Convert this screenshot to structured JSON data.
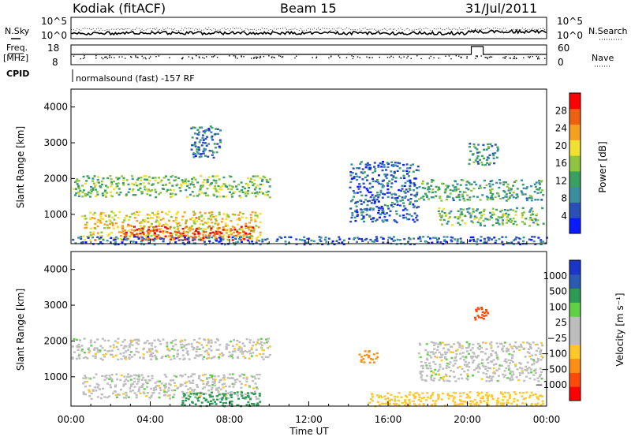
{
  "header": {
    "station": "Kodiak (fitACF)",
    "beam": "Beam 15",
    "date": "31/Jul/2011"
  },
  "left_labels": {
    "nsky": "N.Sky",
    "freq": "Freq.",
    "mhz": "[MHz]",
    "cpid": "CPID"
  },
  "right_labels": {
    "nsearch": "N.Search",
    "nave": "Nave"
  },
  "noise_panel": {
    "left_ticks": [
      "10^5",
      "10^0"
    ],
    "right_ticks": [
      "10^5",
      "10^0"
    ]
  },
  "freq_panel": {
    "left_ticks": [
      "18",
      "8"
    ],
    "right_ticks": [
      "60",
      "0"
    ]
  },
  "cpid_text": "normalsound (fast) -157 RF",
  "colors": {
    "power_scale": [
      "#0a1cff",
      "#2b4fb8",
      "#3b8ea0",
      "#3aa060",
      "#8fc440",
      "#f0e030",
      "#f5a020",
      "#f06010",
      "#ff0000"
    ],
    "velocity_scale": [
      "#ff0000",
      "#ff4a0a",
      "#ff8f14",
      "#ffc828",
      "#bdbdbd",
      "#bdbdbd",
      "#5fd048",
      "#2f9a55",
      "#2a5ab3",
      "#1a36c8"
    ]
  },
  "chart_data": [
    {
      "type": "heatmap",
      "panel": "power",
      "ylabel": "Slant Range [km]",
      "yticks": [
        "1000",
        "2000",
        "3000",
        "4000"
      ],
      "ylim": [
        180,
        4500
      ],
      "xlim": [
        0,
        24
      ],
      "colorbar_label": "Power [dB]",
      "colorbar_ticks": [
        "4",
        "8",
        "12",
        "16",
        "20",
        "24",
        "28"
      ],
      "colorbar_range": [
        0,
        32
      ],
      "regions": [
        {
          "t0": 0.0,
          "t1": 10.0,
          "r0": 1500,
          "r1": 2100,
          "value": 15
        },
        {
          "t0": 0.5,
          "t1": 9.5,
          "r0": 300,
          "r1": 1100,
          "value": 20
        },
        {
          "t0": 2.5,
          "t1": 9.2,
          "r0": 300,
          "r1": 700,
          "value": 27
        },
        {
          "t0": 6.0,
          "t1": 7.5,
          "r0": 2600,
          "r1": 3500,
          "value": 8
        },
        {
          "t0": 14.0,
          "t1": 17.5,
          "r0": 800,
          "r1": 2500,
          "value": 7
        },
        {
          "t0": 17.5,
          "t1": 23.8,
          "r0": 1400,
          "r1": 2000,
          "value": 12
        },
        {
          "t0": 18.5,
          "t1": 23.8,
          "r0": 700,
          "r1": 1200,
          "value": 14
        },
        {
          "t0": 20.0,
          "t1": 21.5,
          "r0": 2400,
          "r1": 3000,
          "value": 10
        },
        {
          "t0": 0.0,
          "t1": 24.0,
          "r0": 180,
          "r1": 400,
          "value": 6
        }
      ]
    },
    {
      "type": "heatmap",
      "panel": "velocity",
      "ylabel": "Slant Range [km]",
      "yticks": [
        "1000",
        "2000",
        "3000",
        "4000"
      ],
      "ylim": [
        180,
        4500
      ],
      "xlim": [
        0,
        24
      ],
      "colorbar_label": "Velocity [m s⁻¹]",
      "colorbar_ticks": [
        "1000",
        "500",
        "100",
        "25",
        "−25",
        "−100",
        "−500",
        "−1000"
      ],
      "regions": [
        {
          "t0": 0.0,
          "t1": 10.0,
          "r0": 1500,
          "r1": 2100,
          "value": 0
        },
        {
          "t0": 0.5,
          "t1": 9.5,
          "r0": 400,
          "r1": 1100,
          "value": 0
        },
        {
          "t0": 5.5,
          "t1": 9.5,
          "r0": 200,
          "r1": 600,
          "value": 150
        },
        {
          "t0": 15.0,
          "t1": 23.8,
          "r0": 200,
          "r1": 600,
          "value": -60
        },
        {
          "t0": 17.5,
          "t1": 23.8,
          "r0": 900,
          "r1": 2000,
          "value": 0
        },
        {
          "t0": 20.3,
          "t1": 21.0,
          "r0": 2600,
          "r1": 3000,
          "value": -700
        },
        {
          "t0": 14.5,
          "t1": 15.5,
          "r0": 1400,
          "r1": 1800,
          "value": -300
        }
      ]
    }
  ],
  "xaxis": {
    "ticks": [
      "00:00",
      "04:00",
      "08:00",
      "12:00",
      "16:00",
      "20:00",
      "00:00"
    ],
    "label": "Time UT"
  }
}
